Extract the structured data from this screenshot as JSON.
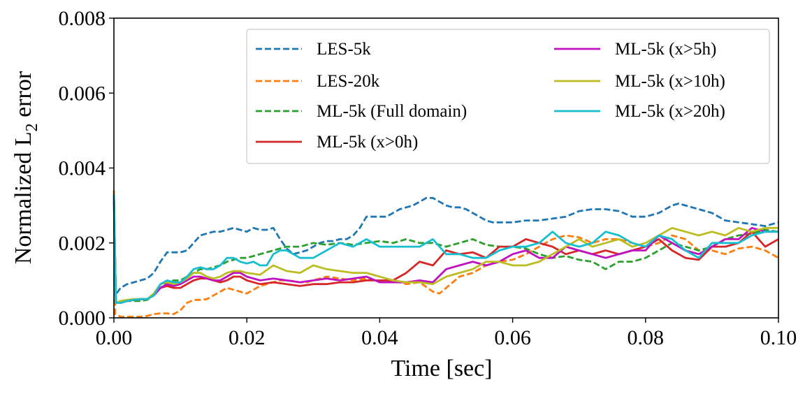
{
  "chart_data": {
    "type": "line",
    "title": "",
    "xlabel": "Time [sec]",
    "ylabel_main": "Normalized L",
    "ylabel_sub": "2",
    "ylabel_tail": " error",
    "xlim": [
      0.0,
      0.1
    ],
    "ylim": [
      0.0,
      0.008
    ],
    "xticks": [
      0.0,
      0.02,
      0.04,
      0.06,
      0.08,
      0.1
    ],
    "xtick_labels": [
      "0.00",
      "0.02",
      "0.04",
      "0.06",
      "0.08",
      "0.10"
    ],
    "yticks": [
      0.0,
      0.002,
      0.004,
      0.006,
      0.008
    ],
    "ytick_labels": [
      "0.000",
      "0.002",
      "0.004",
      "0.006",
      "0.008"
    ],
    "grid": false,
    "legend_placement": "top-right",
    "series": [
      {
        "name": "LES-5k",
        "color": "#1f77b4",
        "style": "dashed",
        "x": [
          0,
          0.0002,
          0.001,
          0.002,
          0.003,
          0.004,
          0.005,
          0.006,
          0.007,
          0.008,
          0.009,
          0.01,
          0.011,
          0.012,
          0.013,
          0.014,
          0.015,
          0.016,
          0.017,
          0.018,
          0.019,
          0.02,
          0.021,
          0.022,
          0.023,
          0.024,
          0.025,
          0.026,
          0.027,
          0.028,
          0.029,
          0.03,
          0.031,
          0.032,
          0.033,
          0.034,
          0.035,
          0.036,
          0.037,
          0.038,
          0.039,
          0.04,
          0.041,
          0.042,
          0.043,
          0.044,
          0.045,
          0.046,
          0.047,
          0.048,
          0.049,
          0.05,
          0.051,
          0.052,
          0.053,
          0.054,
          0.055,
          0.056,
          0.057,
          0.058,
          0.059,
          0.06,
          0.062,
          0.064,
          0.066,
          0.068,
          0.07,
          0.072,
          0.074,
          0.076,
          0.078,
          0.08,
          0.082,
          0.084,
          0.085,
          0.086,
          0.088,
          0.09,
          0.092,
          0.094,
          0.096,
          0.098,
          0.1
        ],
        "y": [
          0.0032,
          0.0006,
          0.0008,
          0.0009,
          0.00095,
          0.001,
          0.00105,
          0.0012,
          0.0015,
          0.00175,
          0.00175,
          0.00175,
          0.0018,
          0.002,
          0.0022,
          0.00225,
          0.0023,
          0.0023,
          0.00235,
          0.0024,
          0.00235,
          0.0023,
          0.0024,
          0.00235,
          0.00235,
          0.0024,
          0.0021,
          0.00185,
          0.0017,
          0.00175,
          0.0018,
          0.0019,
          0.002,
          0.00205,
          0.00205,
          0.0021,
          0.0021,
          0.0022,
          0.0024,
          0.0027,
          0.0027,
          0.0027,
          0.0027,
          0.0028,
          0.0029,
          0.00295,
          0.003,
          0.0031,
          0.0032,
          0.0032,
          0.0031,
          0.003,
          0.00295,
          0.00295,
          0.0029,
          0.0028,
          0.0027,
          0.0026,
          0.00255,
          0.00255,
          0.00255,
          0.00255,
          0.0026,
          0.0026,
          0.00265,
          0.0027,
          0.00285,
          0.0029,
          0.0029,
          0.00285,
          0.0027,
          0.0027,
          0.0028,
          0.003,
          0.00305,
          0.003,
          0.0029,
          0.0028,
          0.0026,
          0.00255,
          0.0025,
          0.00245,
          0.00255
        ]
      },
      {
        "name": "LES-20k",
        "color": "#ff7f0e",
        "style": "dashed",
        "x": [
          0,
          0.0002,
          0.001,
          0.002,
          0.003,
          0.004,
          0.005,
          0.006,
          0.007,
          0.008,
          0.009,
          0.01,
          0.011,
          0.012,
          0.013,
          0.014,
          0.015,
          0.016,
          0.017,
          0.018,
          0.019,
          0.02,
          0.021,
          0.022,
          0.023,
          0.024,
          0.025,
          0.026,
          0.027,
          0.028,
          0.029,
          0.03,
          0.032,
          0.034,
          0.036,
          0.038,
          0.04,
          0.042,
          0.044,
          0.046,
          0.048,
          0.049,
          0.05,
          0.052,
          0.054,
          0.056,
          0.058,
          0.06,
          0.062,
          0.064,
          0.066,
          0.068,
          0.07,
          0.072,
          0.074,
          0.076,
          0.078,
          0.08,
          0.082,
          0.084,
          0.086,
          0.088,
          0.09,
          0.092,
          0.094,
          0.096,
          0.098,
          0.1
        ],
        "y": [
          0.0034,
          0.0001,
          3e-05,
          3e-05,
          3e-05,
          3e-05,
          5e-05,
          0.0001,
          0.00012,
          0.00012,
          0.0001,
          0.0002,
          0.0004,
          0.00048,
          0.00048,
          0.0005,
          0.0006,
          0.0007,
          0.0008,
          0.00075,
          0.0007,
          0.00065,
          0.00075,
          0.00085,
          0.0009,
          0.00095,
          0.001,
          0.001,
          0.00098,
          0.00095,
          0.00095,
          0.001,
          0.0011,
          0.00105,
          0.001,
          0.00105,
          0.00098,
          0.001,
          0.0009,
          0.00095,
          0.0007,
          0.00065,
          0.0008,
          0.0011,
          0.0012,
          0.0014,
          0.0015,
          0.00155,
          0.0017,
          0.0019,
          0.0021,
          0.0022,
          0.00215,
          0.002,
          0.0021,
          0.0021,
          0.002,
          0.0019,
          0.002,
          0.0022,
          0.0021,
          0.0018,
          0.0018,
          0.0017,
          0.00185,
          0.0019,
          0.0018,
          0.0016
        ]
      },
      {
        "name": "ML-5k (Full domain)",
        "color": "#2ca02c",
        "style": "dashed",
        "x": [
          0,
          0.0003,
          0.001,
          0.002,
          0.003,
          0.004,
          0.005,
          0.006,
          0.007,
          0.008,
          0.009,
          0.01,
          0.011,
          0.012,
          0.013,
          0.014,
          0.015,
          0.016,
          0.017,
          0.018,
          0.019,
          0.02,
          0.022,
          0.024,
          0.026,
          0.028,
          0.03,
          0.032,
          0.034,
          0.036,
          0.038,
          0.04,
          0.042,
          0.044,
          0.046,
          0.048,
          0.05,
          0.052,
          0.054,
          0.056,
          0.058,
          0.06,
          0.062,
          0.064,
          0.066,
          0.068,
          0.07,
          0.072,
          0.074,
          0.076,
          0.078,
          0.08,
          0.082,
          0.084,
          0.086,
          0.088,
          0.09,
          0.092,
          0.094,
          0.096,
          0.098,
          0.1
        ],
        "y": [
          0.0033,
          0.0004,
          0.00045,
          0.00045,
          0.00045,
          0.00045,
          0.00048,
          0.0006,
          0.0008,
          0.00095,
          0.001,
          0.001,
          0.0011,
          0.0012,
          0.0013,
          0.0013,
          0.00135,
          0.0014,
          0.0015,
          0.00155,
          0.0016,
          0.0016,
          0.0017,
          0.0018,
          0.0019,
          0.0019,
          0.002,
          0.00195,
          0.002,
          0.00195,
          0.002,
          0.00205,
          0.002,
          0.0021,
          0.002,
          0.002,
          0.0019,
          0.002,
          0.0021,
          0.00195,
          0.0019,
          0.0019,
          0.00185,
          0.0017,
          0.0016,
          0.00165,
          0.00155,
          0.0015,
          0.0013,
          0.0015,
          0.0015,
          0.0016,
          0.0018,
          0.002,
          0.0019,
          0.0018,
          0.0019,
          0.0021,
          0.0022,
          0.00225,
          0.00235,
          0.0023
        ]
      },
      {
        "name": "ML-5k (x>0h)",
        "color": "#d62728",
        "style": "solid",
        "x": [
          0,
          0.0003,
          0.001,
          0.002,
          0.003,
          0.004,
          0.005,
          0.006,
          0.007,
          0.008,
          0.009,
          0.01,
          0.011,
          0.012,
          0.013,
          0.014,
          0.015,
          0.016,
          0.017,
          0.018,
          0.019,
          0.02,
          0.022,
          0.024,
          0.026,
          0.028,
          0.03,
          0.032,
          0.034,
          0.036,
          0.038,
          0.04,
          0.042,
          0.044,
          0.046,
          0.048,
          0.05,
          0.052,
          0.054,
          0.056,
          0.058,
          0.06,
          0.062,
          0.064,
          0.066,
          0.068,
          0.07,
          0.072,
          0.074,
          0.076,
          0.078,
          0.08,
          0.082,
          0.084,
          0.086,
          0.088,
          0.09,
          0.092,
          0.094,
          0.096,
          0.098,
          0.1
        ],
        "y": [
          0.0033,
          0.0004,
          0.0004,
          0.00045,
          0.00048,
          0.0005,
          0.0005,
          0.0006,
          0.0008,
          0.00085,
          0.0008,
          0.0008,
          0.0009,
          0.001,
          0.00105,
          0.00105,
          0.001,
          0.00095,
          0.001,
          0.0011,
          0.0011,
          0.001,
          0.0009,
          0.00095,
          0.0009,
          0.00085,
          0.0009,
          0.0009,
          0.00095,
          0.00095,
          0.001,
          0.001,
          0.001,
          0.0012,
          0.0015,
          0.0014,
          0.0018,
          0.0017,
          0.00175,
          0.0016,
          0.0019,
          0.0019,
          0.0021,
          0.002,
          0.0019,
          0.0017,
          0.0018,
          0.0017,
          0.0018,
          0.0017,
          0.0018,
          0.0019,
          0.0021,
          0.0018,
          0.0016,
          0.00155,
          0.0019,
          0.0019,
          0.002,
          0.0023,
          0.0019,
          0.0021
        ]
      },
      {
        "name": "ML-5k (x>5h)",
        "color": "#c011c0",
        "style": "solid",
        "x": [
          0,
          0.0003,
          0.001,
          0.002,
          0.003,
          0.004,
          0.005,
          0.006,
          0.007,
          0.008,
          0.009,
          0.01,
          0.011,
          0.012,
          0.013,
          0.014,
          0.015,
          0.016,
          0.017,
          0.018,
          0.019,
          0.02,
          0.022,
          0.024,
          0.026,
          0.028,
          0.03,
          0.032,
          0.034,
          0.036,
          0.038,
          0.04,
          0.042,
          0.044,
          0.046,
          0.048,
          0.05,
          0.052,
          0.054,
          0.056,
          0.058,
          0.06,
          0.062,
          0.064,
          0.066,
          0.068,
          0.07,
          0.072,
          0.074,
          0.076,
          0.078,
          0.08,
          0.082,
          0.084,
          0.086,
          0.088,
          0.09,
          0.092,
          0.094,
          0.096,
          0.098,
          0.1
        ],
        "y": [
          0.0033,
          0.0004,
          0.00042,
          0.00045,
          0.00048,
          0.0005,
          0.0005,
          0.0006,
          0.0008,
          0.0009,
          0.00085,
          0.0009,
          0.001,
          0.0011,
          0.0011,
          0.00105,
          0.001,
          0.001,
          0.0011,
          0.0012,
          0.0012,
          0.0011,
          0.001,
          0.00105,
          0.001,
          0.00095,
          0.001,
          0.00105,
          0.001,
          0.00105,
          0.0011,
          0.00095,
          0.00095,
          0.00095,
          0.001,
          0.00095,
          0.0013,
          0.0014,
          0.0015,
          0.0014,
          0.0015,
          0.0017,
          0.0018,
          0.0016,
          0.0016,
          0.0019,
          0.0018,
          0.0017,
          0.0016,
          0.0017,
          0.0018,
          0.0018,
          0.0022,
          0.002,
          0.0018,
          0.0017,
          0.0019,
          0.0021,
          0.0021,
          0.0024,
          0.0023,
          0.0023
        ]
      },
      {
        "name": "ML-5k (x>10h)",
        "color": "#bcbd22",
        "style": "solid",
        "x": [
          0,
          0.0003,
          0.001,
          0.002,
          0.003,
          0.004,
          0.005,
          0.006,
          0.007,
          0.008,
          0.009,
          0.01,
          0.011,
          0.012,
          0.013,
          0.014,
          0.015,
          0.016,
          0.017,
          0.018,
          0.019,
          0.02,
          0.022,
          0.024,
          0.026,
          0.028,
          0.03,
          0.032,
          0.034,
          0.036,
          0.038,
          0.04,
          0.042,
          0.044,
          0.046,
          0.048,
          0.05,
          0.052,
          0.054,
          0.056,
          0.058,
          0.06,
          0.062,
          0.064,
          0.066,
          0.068,
          0.07,
          0.072,
          0.074,
          0.076,
          0.078,
          0.08,
          0.082,
          0.084,
          0.086,
          0.088,
          0.09,
          0.092,
          0.094,
          0.096,
          0.098,
          0.1
        ],
        "y": [
          0.0033,
          0.0004,
          0.00045,
          0.00048,
          0.0005,
          0.0005,
          0.0005,
          0.00065,
          0.0009,
          0.00095,
          0.0009,
          0.00095,
          0.00105,
          0.0012,
          0.0012,
          0.0011,
          0.00105,
          0.0011,
          0.0012,
          0.00125,
          0.00125,
          0.0012,
          0.00115,
          0.0014,
          0.00125,
          0.0012,
          0.0014,
          0.0013,
          0.00125,
          0.0012,
          0.0012,
          0.0011,
          0.001,
          0.00095,
          0.00095,
          0.0009,
          0.0011,
          0.0012,
          0.0013,
          0.0015,
          0.0015,
          0.0014,
          0.0014,
          0.0015,
          0.0017,
          0.0019,
          0.0021,
          0.0019,
          0.002,
          0.0021,
          0.0019,
          0.002,
          0.0022,
          0.0024,
          0.0023,
          0.0022,
          0.0023,
          0.0022,
          0.0024,
          0.0023,
          0.0024,
          0.0024
        ]
      },
      {
        "name": "ML-5k (x>20h)",
        "color": "#17becf",
        "style": "solid",
        "x": [
          0,
          0.0003,
          0.001,
          0.002,
          0.003,
          0.004,
          0.005,
          0.006,
          0.007,
          0.008,
          0.009,
          0.01,
          0.011,
          0.012,
          0.013,
          0.014,
          0.015,
          0.016,
          0.017,
          0.018,
          0.019,
          0.02,
          0.021,
          0.022,
          0.023,
          0.024,
          0.025,
          0.026,
          0.028,
          0.03,
          0.032,
          0.034,
          0.036,
          0.038,
          0.04,
          0.042,
          0.044,
          0.046,
          0.048,
          0.05,
          0.052,
          0.054,
          0.056,
          0.058,
          0.06,
          0.062,
          0.064,
          0.066,
          0.068,
          0.07,
          0.072,
          0.074,
          0.076,
          0.078,
          0.08,
          0.082,
          0.084,
          0.086,
          0.088,
          0.09,
          0.092,
          0.094,
          0.096,
          0.098,
          0.1
        ],
        "y": [
          0.0033,
          0.0004,
          0.0004,
          0.00045,
          0.00048,
          0.0005,
          0.0005,
          0.0006,
          0.0009,
          0.001,
          0.00095,
          0.00095,
          0.0011,
          0.0013,
          0.00135,
          0.0013,
          0.0013,
          0.0014,
          0.0016,
          0.0016,
          0.0015,
          0.00145,
          0.0015,
          0.0014,
          0.0014,
          0.0017,
          0.0018,
          0.0018,
          0.0016,
          0.0016,
          0.0018,
          0.002,
          0.0019,
          0.0021,
          0.0019,
          0.0019,
          0.0019,
          0.0019,
          0.0021,
          0.0017,
          0.0017,
          0.0016,
          0.0016,
          0.0018,
          0.0019,
          0.0019,
          0.002,
          0.0023,
          0.002,
          0.0019,
          0.002,
          0.0023,
          0.0022,
          0.002,
          0.0019,
          0.0022,
          0.0021,
          0.0018,
          0.0016,
          0.002,
          0.002,
          0.002,
          0.0022,
          0.0023,
          0.0023
        ]
      }
    ]
  }
}
